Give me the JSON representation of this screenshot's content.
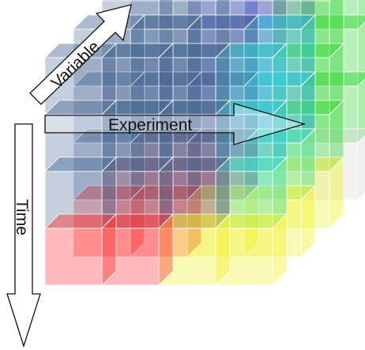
{
  "diagram": {
    "axes": {
      "variable": {
        "label": "Variable"
      },
      "experiment": {
        "label": "Experiment"
      },
      "time": {
        "label": "Time"
      }
    },
    "cube_grid": {
      "size": 4
    },
    "colors": {
      "background": "#ffffff",
      "edge": "#ffffff",
      "arrow_fill": "#ffffff",
      "arrow_stroke": "#111111",
      "back_layer": "#3d3dd6",
      "front_layer": "#4a6a94",
      "right_layer": "#28d428",
      "far_right_layer": "#35dede",
      "bottom_layer": "#ff2d2d",
      "bottom_right": "#f0f020",
      "missing_corner": "#d8d8d8"
    }
  }
}
